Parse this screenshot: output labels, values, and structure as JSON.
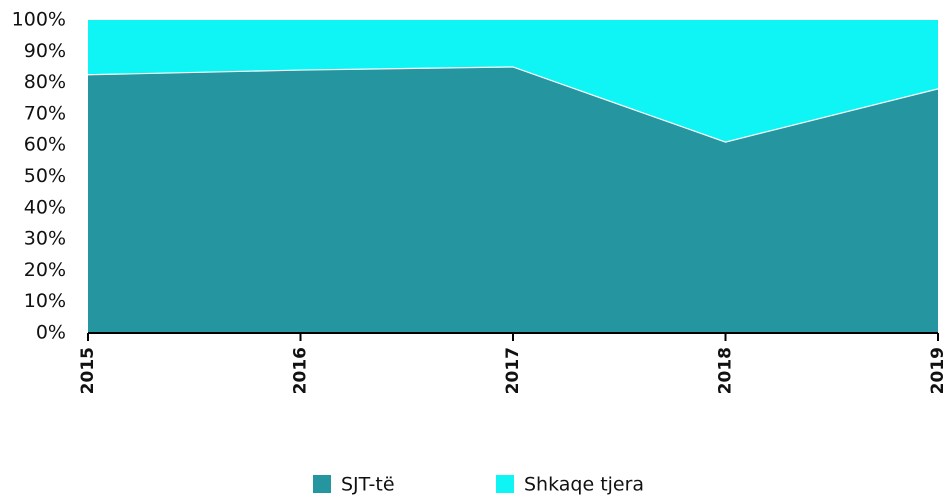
{
  "chart_data": {
    "type": "stacked_area_percent",
    "x": [
      2015,
      2016,
      2017,
      2018,
      2019
    ],
    "xlim": [
      2015,
      2019
    ],
    "series": [
      {
        "name": "SJT-të",
        "color": "#2596a0",
        "values": [
          82.5,
          84,
          85,
          61,
          78
        ]
      },
      {
        "name": "Shkaqe tjera",
        "color": "#0ff4f4",
        "values": [
          17.5,
          16,
          15,
          39,
          22
        ]
      }
    ],
    "ylim": [
      0,
      100
    ],
    "yticks": [
      {
        "value": 0,
        "label": "0%"
      },
      {
        "value": 10,
        "label": "10%"
      },
      {
        "value": 20,
        "label": "20%"
      },
      {
        "value": 30,
        "label": "30%"
      },
      {
        "value": 40,
        "label": "40%"
      },
      {
        "value": 50,
        "label": "50%"
      },
      {
        "value": 60,
        "label": "60%"
      },
      {
        "value": 70,
        "label": "70%"
      },
      {
        "value": 80,
        "label": "80%"
      },
      {
        "value": 90,
        "label": "90%"
      },
      {
        "value": 100,
        "label": "100%"
      }
    ],
    "legend": "bottom"
  }
}
